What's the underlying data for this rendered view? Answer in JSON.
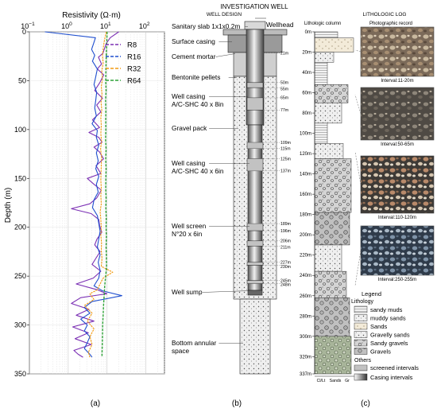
{
  "panel_a": {
    "x_axis_title": "Resistivity (Ω·m)",
    "x_ticks": [
      "10",
      "10",
      "10",
      "10"
    ],
    "x_tick_exponents": [
      "−1",
      "0",
      "1",
      "2"
    ],
    "y_axis_title": "Depth (m)",
    "y_ticks": [
      "0",
      "50",
      "100",
      "150",
      "200",
      "250",
      "300",
      "350"
    ],
    "legend": [
      "R8",
      "R16",
      "R32",
      "R64"
    ],
    "caption": "(a)"
  },
  "chart_data": {
    "type": "line",
    "title": "",
    "xlabel": "Resistivity (Ω·m)",
    "ylabel": "Depth (m)",
    "x_scale": "log",
    "xlim": [
      0.1,
      300
    ],
    "ylim": [
      350,
      0
    ],
    "grid": true,
    "legend_position": "top-right",
    "series": [
      {
        "name": "R8",
        "color": "#7b2fb4",
        "depth": [
          0,
          6,
          12,
          22,
          26,
          33,
          38,
          44,
          52,
          60,
          68,
          75,
          82,
          90,
          98,
          103,
          108,
          113,
          118,
          123,
          130,
          137,
          145,
          150,
          156,
          162,
          170,
          176,
          181,
          186,
          192,
          198,
          205,
          212,
          218,
          225,
          232,
          238,
          245,
          252,
          258,
          264,
          268,
          272,
          278,
          284,
          290,
          296,
          302,
          308,
          314,
          320,
          326,
          330,
          333
        ],
        "resistivity": [
          20,
          12,
          9.5,
          7.8,
          6,
          7.2,
          5.6,
          8.2,
          6.5,
          4.8,
          7.6,
          5.4,
          6.9,
          4.2,
          6.4,
          3.4,
          6.1,
          7.4,
          4.6,
          6.4,
          8.1,
          5.2,
          6.9,
          3.1,
          4.6,
          7.1,
          5.4,
          3.6,
          1.2,
          3.9,
          6.1,
          6.4,
          7.3,
          5.5,
          4.8,
          6.6,
          5.1,
          4.1,
          6.9,
          4.4,
          1.6,
          5.6,
          9.8,
          2.1,
          1.2,
          3.4,
          1.6,
          4.6,
          1.3,
          3.3,
          1.5,
          3.9,
          1.4,
          1.8,
          2.4
        ]
      },
      {
        "name": "R16",
        "color": "#1f4fcf",
        "depth": [
          0,
          6,
          12,
          18,
          24,
          30,
          38,
          46,
          54,
          62,
          70,
          78,
          86,
          94,
          101,
          108,
          116,
          124,
          132,
          140,
          148,
          156,
          164,
          172,
          180,
          188,
          196,
          204,
          212,
          220,
          228,
          236,
          244,
          252,
          260,
          265,
          270,
          276,
          282,
          288,
          294,
          300,
          306,
          312,
          318,
          324,
          330,
          333
        ],
        "resistivity": [
          0.25,
          5,
          4.5,
          4,
          4.8,
          4.2,
          5.6,
          5.1,
          4.6,
          5.4,
          5.1,
          4.8,
          5.3,
          4.1,
          5.6,
          5.3,
          6.1,
          5.3,
          5.9,
          5.1,
          6.1,
          5.3,
          5.9,
          4.6,
          4.2,
          5.6,
          6.1,
          6.6,
          6.1,
          5.6,
          6.6,
          5.9,
          6.6,
          6.1,
          4.6,
          7.6,
          24,
          4.1,
          2.6,
          3.6,
          2.1,
          3.1,
          2.6,
          3.6,
          3.1,
          2.6,
          3.6,
          4.1
        ]
      },
      {
        "name": "R32",
        "color": "#f29a12",
        "depth": [
          0,
          8,
          16,
          24,
          32,
          40,
          48,
          56,
          64,
          72,
          80,
          88,
          96,
          104,
          112,
          120,
          128,
          136,
          144,
          152,
          160,
          168,
          176,
          184,
          192,
          200,
          208,
          216,
          224,
          232,
          240,
          246,
          252,
          258,
          264,
          268,
          274,
          280,
          288,
          296,
          304,
          312,
          320,
          328,
          333
        ],
        "resistivity": [
          9.5,
          8.6,
          8,
          7.6,
          7.9,
          7.3,
          7.6,
          7.1,
          7.4,
          7,
          7.3,
          6.9,
          7.1,
          6.9,
          7.2,
          6.8,
          7.2,
          7.1,
          7,
          6.9,
          7.1,
          6.9,
          7.1,
          6.6,
          6.9,
          7.1,
          6.9,
          7.2,
          7.1,
          7.4,
          7.1,
          14,
          7.9,
          6.6,
          5.6,
          3.6,
          4.6,
          2.6,
          4.1,
          3.1,
          4.6,
          3.6,
          4.1,
          3.3,
          3.6
        ]
      },
      {
        "name": "R64",
        "color": "#2fa338",
        "depth": [
          0,
          10,
          20,
          30,
          40,
          50,
          60,
          70,
          80,
          90,
          100,
          110,
          120,
          130,
          140,
          150,
          160,
          170,
          180,
          190,
          200,
          210,
          220,
          230,
          240,
          250,
          260,
          270,
          280,
          290,
          300,
          310,
          320,
          330,
          333
        ],
        "resistivity": [
          10,
          9.8,
          9.6,
          9.4,
          9.3,
          9.2,
          9.4,
          9.1,
          9.3,
          9.2,
          9.3,
          9.1,
          9.4,
          9.2,
          9.4,
          9.3,
          9.2,
          9.4,
          9.3,
          9.5,
          9.4,
          9.6,
          9.4,
          9.6,
          9.7,
          9.2,
          8.7,
          8.4,
          8.1,
          7.9,
          7.7,
          7.6,
          7.5,
          7.4,
          7.4
        ]
      }
    ]
  },
  "panel_b": {
    "header": "INVESTIGATION WELL",
    "subheader": "WELL DESIGN",
    "labels": [
      "Sanitary slab 1x1x0.2m",
      "Surface casing",
      "Cement mortar",
      "Bentonite pellets",
      "Well casing",
      "A/C-SHC 40 x 8in",
      "Gravel pack",
      "Well casing",
      "A/C-SHC 40 x 6in",
      "Well screen",
      "N°20 x 6in",
      "Well sump",
      "Bottom annular",
      "space"
    ],
    "wellhead": "Wellhead",
    "depth_marks": [
      "21m",
      "50m",
      "55m",
      "65m",
      "77m",
      "109m",
      "115m",
      "125m",
      "137m",
      "189m",
      "196m",
      "206m",
      "211m",
      "227m",
      "230m",
      "245m",
      "248m"
    ],
    "caption": "(b)"
  },
  "panel_c": {
    "subheader": "LITHOLOGIC LOG",
    "column_title": "Lithologic column",
    "photo_title": "Photographic record",
    "depth_ticks": [
      "0m",
      "20m",
      "40m",
      "60m",
      "80m",
      "100m",
      "120m",
      "140m",
      "160m",
      "180m",
      "200m",
      "220m",
      "240m",
      "260m",
      "280m",
      "300m",
      "320m",
      "337m"
    ],
    "bottom_labels": [
      "Cl/Lt",
      "Sands",
      "Gr"
    ],
    "photo_intervals": [
      "Interval:11-20m",
      "Interval:50-65m",
      "Interval:110-120m",
      "Interval:250-255m"
    ],
    "legend_title": "Legend",
    "lithology_title": "Lithology",
    "lithology_items": [
      "sandy muds",
      "muddy sands",
      "Sands",
      "Gravelly sands",
      "Sandy gravels",
      "Gravels"
    ],
    "others_title": "Others",
    "other_items": [
      "screened intervals",
      "Casing intervals"
    ],
    "caption": "(c)"
  }
}
